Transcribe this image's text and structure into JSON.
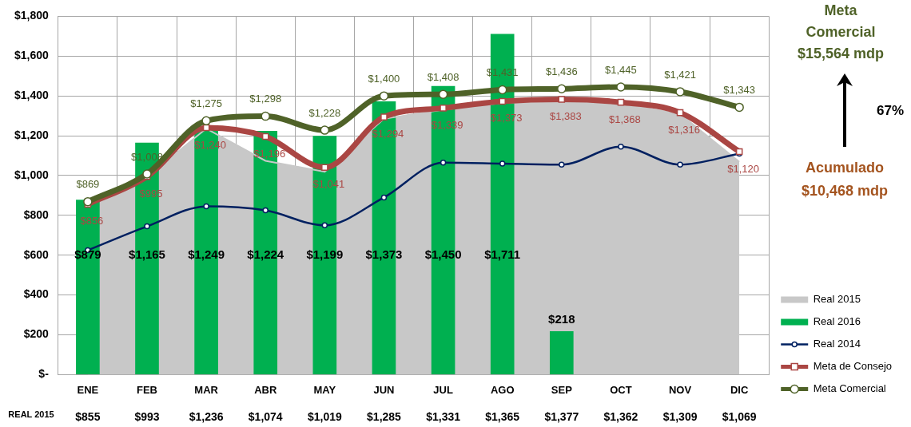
{
  "chart_data": {
    "type": "bar",
    "categories": [
      "ENE",
      "FEB",
      "MAR",
      "ABR",
      "MAY",
      "JUN",
      "JUL",
      "AGO",
      "SEP",
      "OCT",
      "NOV",
      "DIC"
    ],
    "ylim": [
      0,
      1800
    ],
    "yticks": [
      {
        "value": 0,
        "label": "$-"
      },
      {
        "value": 200,
        "label": "$200"
      },
      {
        "value": 400,
        "label": "$400"
      },
      {
        "value": 600,
        "label": "$600"
      },
      {
        "value": 800,
        "label": "$800"
      },
      {
        "value": 1000,
        "label": "$1,000"
      },
      {
        "value": 1200,
        "label": "$1,200"
      },
      {
        "value": 1400,
        "label": "$1,400"
      },
      {
        "value": 1600,
        "label": "$1,600"
      },
      {
        "value": 1800,
        "label": "$1,800"
      }
    ],
    "grid": true,
    "legend": "bottom right",
    "annotations": [
      "REAL 2015",
      "Meta\nComercial\n$15,564 mdp",
      "67%",
      "Acumulado\n$10,468 mdp"
    ],
    "series": [
      {
        "name": "Real 2015",
        "type": "area",
        "color": "#c8c8c8",
        "values": [
          855,
          993,
          1236,
          1074,
          1019,
          1285,
          1331,
          1365,
          1377,
          1362,
          1309,
          1069
        ],
        "value_labels": [
          "$855",
          "$993",
          "$1,236",
          "$1,074",
          "$1,019",
          "$1,285",
          "$1,331",
          "$1,365",
          "$1,377",
          "$1,362",
          "$1,309",
          "$1,069"
        ]
      },
      {
        "name": "Real 2016",
        "type": "bar",
        "color": "#00b050",
        "values": [
          879,
          1165,
          1249,
          1224,
          1199,
          1373,
          1450,
          1711,
          218,
          null,
          null,
          null
        ],
        "value_labels": [
          "$879",
          "$1,165",
          "$1,249",
          "$1,224",
          "$1,199",
          "$1,373",
          "$1,450",
          "$1,711",
          "$218",
          null,
          null,
          null
        ]
      },
      {
        "name": "Real 2014",
        "type": "line",
        "color": "#002060",
        "marker": "circle",
        "values": [
          625,
          745,
          845,
          825,
          750,
          890,
          1065,
          1060,
          1055,
          1145,
          1055,
          1110
        ]
      },
      {
        "name": "Meta de Consejo",
        "type": "line",
        "color": "#aa4643",
        "marker": "square",
        "values": [
          856,
          995,
          1240,
          1196,
          1041,
          1294,
          1339,
          1373,
          1383,
          1368,
          1316,
          1120
        ],
        "value_labels": [
          "$856",
          "$995",
          "$1,240",
          "$1,196",
          "$1,041",
          "$1,294",
          "$1,339",
          "$1,373",
          "$1,383",
          "$1,368",
          "$1,316",
          "$1,120"
        ]
      },
      {
        "name": "Meta Comercial",
        "type": "line",
        "color": "#4f6228",
        "marker": "circle",
        "values": [
          869,
          1008,
          1275,
          1298,
          1228,
          1400,
          1408,
          1431,
          1436,
          1445,
          1421,
          1343
        ],
        "value_labels": [
          "$869",
          "$1,008",
          "$1,275",
          "$1,298",
          "$1,228",
          "$1,400",
          "$1,408",
          "$1,431",
          "$1,436",
          "$1,445",
          "$1,421",
          "$1,343"
        ]
      }
    ]
  }
}
